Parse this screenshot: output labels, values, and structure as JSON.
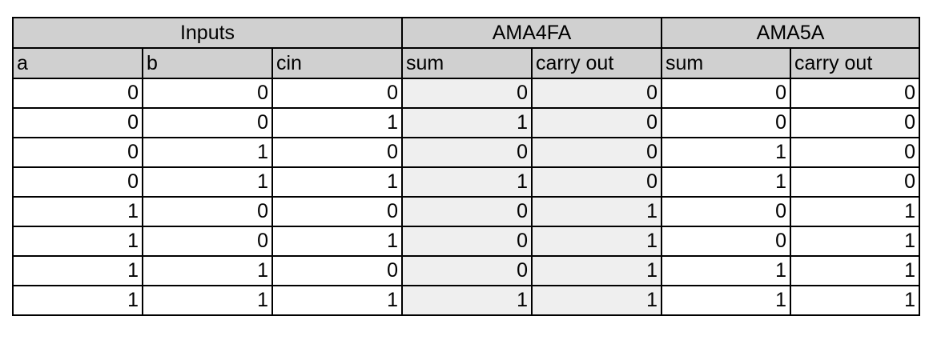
{
  "colors": {
    "header_bg": "#d0d0d0",
    "output_bg": "#efefef",
    "border": "#000000"
  },
  "table": {
    "groups": [
      {
        "label": "Inputs",
        "span": 3
      },
      {
        "label": "AMA4FA",
        "span": 2
      },
      {
        "label": "AMA5A",
        "span": 2
      }
    ],
    "columns": [
      "a",
      "b",
      "cin",
      "sum",
      "carry out",
      "sum",
      "carry out"
    ],
    "rows": [
      [
        "0",
        "0",
        "0",
        "0",
        "0",
        "0",
        "0"
      ],
      [
        "0",
        "0",
        "1",
        "1",
        "0",
        "0",
        "0"
      ],
      [
        "0",
        "1",
        "0",
        "0",
        "0",
        "1",
        "0"
      ],
      [
        "0",
        "1",
        "1",
        "1",
        "0",
        "1",
        "0"
      ],
      [
        "1",
        "0",
        "0",
        "0",
        "1",
        "0",
        "1"
      ],
      [
        "1",
        "0",
        "1",
        "0",
        "1",
        "0",
        "1"
      ],
      [
        "1",
        "1",
        "0",
        "0",
        "1",
        "1",
        "1"
      ],
      [
        "1",
        "1",
        "1",
        "1",
        "1",
        "1",
        "1"
      ]
    ]
  }
}
